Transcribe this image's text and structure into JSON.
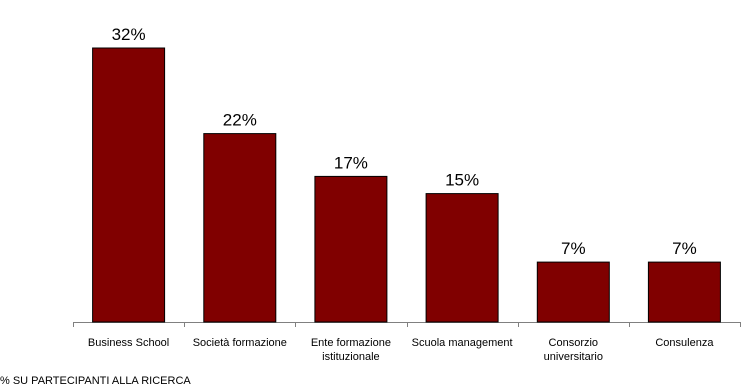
{
  "chart_data": {
    "type": "bar",
    "categories": [
      "Business School",
      "Società formazione",
      "Ente formazione istituzionale",
      "Scuola management",
      "Consorzio universitario",
      "Consulenza"
    ],
    "category_lines": [
      [
        "Business School"
      ],
      [
        "Società formazione"
      ],
      [
        "Ente formazione",
        "istituzionale"
      ],
      [
        "Scuola management"
      ],
      [
        "Consorzio",
        "universitario"
      ],
      [
        "Consulenza"
      ]
    ],
    "values": [
      32,
      22,
      17,
      15,
      7,
      7
    ],
    "data_labels": [
      "32%",
      "22%",
      "17%",
      "15%",
      "7%",
      "7%"
    ],
    "ylim": [
      0,
      40
    ],
    "grid": false,
    "legend": "none",
    "bar_color": "#800000",
    "bar_border_color": "#000000",
    "axis_color": "#808080"
  },
  "footnote": "% SU PARTECIPANTI ALLA RICERCA"
}
